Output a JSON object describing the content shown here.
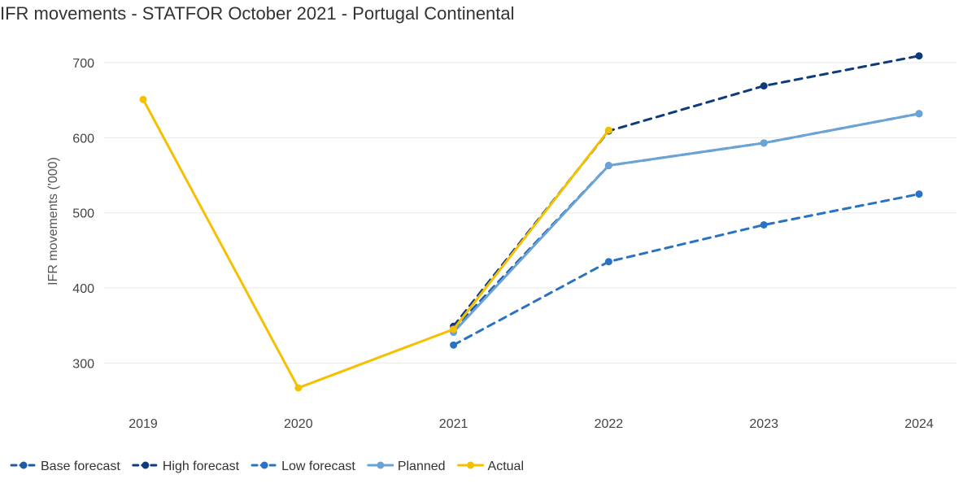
{
  "chart_data": {
    "type": "line",
    "title": "IFR movements - STATFOR October 2021 - Portugal Continental",
    "xlabel": "",
    "ylabel": "IFR movements ('000)",
    "categories": [
      "2019",
      "2020",
      "2021",
      "2022",
      "2023",
      "2024"
    ],
    "yticks": [
      300,
      400,
      500,
      600,
      700
    ],
    "ylim": [
      250,
      710
    ],
    "grid": "horizontal",
    "legend_position": "bottom-left",
    "series": [
      {
        "name": "Base forecast",
        "color": "#1f5aa6",
        "dash": true,
        "values": [
          null,
          null,
          345,
          563,
          593,
          632
        ]
      },
      {
        "name": "High forecast",
        "color": "#0d3b7e",
        "dash": true,
        "values": [
          null,
          null,
          349,
          609,
          669,
          709
        ]
      },
      {
        "name": "Low forecast",
        "color": "#2a73c2",
        "dash": true,
        "values": [
          null,
          null,
          324,
          435,
          484,
          525
        ]
      },
      {
        "name": "Planned",
        "color": "#6aa3d6",
        "dash": false,
        "values": [
          null,
          null,
          341,
          563,
          593,
          632
        ]
      },
      {
        "name": "Actual",
        "color": "#f5c000",
        "dash": false,
        "values": [
          651,
          267,
          345,
          610,
          null,
          null
        ]
      }
    ]
  }
}
